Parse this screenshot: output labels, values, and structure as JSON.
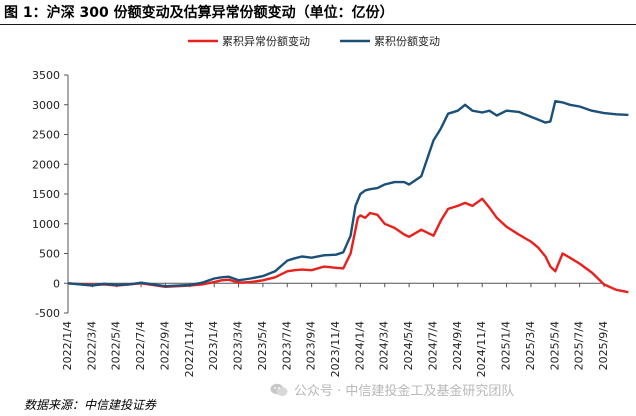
{
  "figure": {
    "title": "图 1：沪深 300 份额变动及估算异常份额变动（单位：亿份）",
    "source": "数据来源：中信建投证券",
    "watermark": "公众号 · 中信建投金工及基金研究团队",
    "watermark_icon": "wechat-icon"
  },
  "chart_data": {
    "type": "line",
    "title": "",
    "xlabel": "",
    "ylabel": "",
    "ylim": [
      -500,
      3500
    ],
    "yticks": [
      -500,
      0,
      500,
      1000,
      1500,
      2000,
      2500,
      3000,
      3500
    ],
    "xticks": [
      "2022/1/4",
      "2022/3/4",
      "2022/5/4",
      "2022/7/4",
      "2022/9/4",
      "2022/11/4",
      "2023/1/4",
      "2023/3/4",
      "2023/5/4",
      "2023/7/4",
      "2023/9/4",
      "2023/11/4",
      "2024/1/4",
      "2024/3/4",
      "2024/5/4",
      "2024/7/4",
      "2024/9/4",
      "2024/11/4",
      "2025/1/4",
      "2025/3/4",
      "2025/5/4",
      "2025/7/4",
      "2025/9/4"
    ],
    "grid": false,
    "legend_position": "top-center",
    "series": [
      {
        "name": "累积异常份额变动",
        "color": "#e8211d",
        "x": [
          0,
          1,
          1.5,
          2,
          2.5,
          3,
          3.5,
          4,
          4.5,
          5,
          5.5,
          6,
          6.3,
          6.6,
          7,
          7.5,
          8,
          8.5,
          9,
          9.3,
          9.6,
          10,
          10.5,
          11,
          11.3,
          11.6,
          11.9,
          12,
          12.2,
          12.4,
          12.7,
          13,
          13.4,
          13.8,
          14,
          14.5,
          15,
          15.3,
          15.6,
          16,
          16.3,
          16.6,
          17,
          17.3,
          17.6,
          18,
          18.5,
          19,
          19.3,
          19.6,
          19.8,
          20,
          20.3,
          20.6,
          21,
          21.5,
          22,
          22.5,
          23
        ],
        "y": [
          0,
          -30,
          -20,
          -40,
          -20,
          0,
          -30,
          -60,
          -50,
          -40,
          -20,
          20,
          50,
          60,
          10,
          20,
          50,
          100,
          200,
          220,
          230,
          220,
          280,
          260,
          250,
          500,
          1100,
          1140,
          1100,
          1180,
          1150,
          1000,
          930,
          820,
          780,
          900,
          800,
          1050,
          1250,
          1300,
          1350,
          1300,
          1420,
          1270,
          1100,
          950,
          820,
          700,
          600,
          450,
          280,
          200,
          500,
          430,
          330,
          180,
          -20,
          -110,
          -150
        ]
      },
      {
        "name": "累积份额变动",
        "color": "#1b5079",
        "x": [
          0,
          1,
          1.5,
          2,
          2.5,
          3,
          3.5,
          4,
          4.5,
          5,
          5.5,
          6,
          6.3,
          6.6,
          7,
          7.5,
          8,
          8.5,
          9,
          9.3,
          9.6,
          10,
          10.5,
          11,
          11.3,
          11.6,
          11.8,
          12,
          12.2,
          12.4,
          12.7,
          13,
          13.4,
          13.8,
          14,
          14.5,
          15,
          15.3,
          15.6,
          16,
          16.3,
          16.6,
          17,
          17.3,
          17.6,
          18,
          18.5,
          19,
          19.3,
          19.6,
          19.8,
          20,
          20.3,
          20.6,
          21,
          21.5,
          22,
          22.5,
          23
        ],
        "y": [
          0,
          -40,
          -10,
          -30,
          -20,
          10,
          -20,
          -50,
          -40,
          -30,
          10,
          80,
          100,
          110,
          50,
          80,
          120,
          200,
          380,
          420,
          450,
          430,
          470,
          480,
          520,
          800,
          1300,
          1500,
          1560,
          1580,
          1600,
          1660,
          1700,
          1700,
          1660,
          1800,
          2400,
          2600,
          2850,
          2900,
          3000,
          2900,
          2870,
          2900,
          2820,
          2900,
          2880,
          2800,
          2750,
          2700,
          2720,
          3060,
          3040,
          3000,
          2970,
          2900,
          2860,
          2840,
          2830
        ]
      }
    ]
  }
}
